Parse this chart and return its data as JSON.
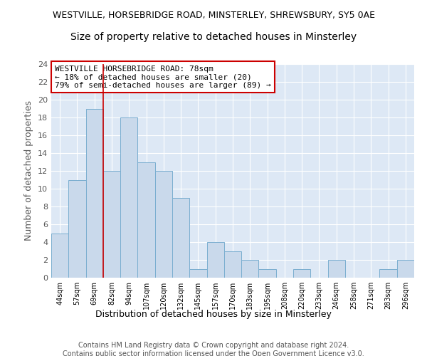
{
  "title1": "WESTVILLE, HORSEBRIDGE ROAD, MINSTERLEY, SHREWSBURY, SY5 0AE",
  "title2": "Size of property relative to detached houses in Minsterley",
  "xlabel": "Distribution of detached houses by size in Minsterley",
  "ylabel": "Number of detached properties",
  "categories": [
    "44sqm",
    "57sqm",
    "69sqm",
    "82sqm",
    "94sqm",
    "107sqm",
    "120sqm",
    "132sqm",
    "145sqm",
    "157sqm",
    "170sqm",
    "183sqm",
    "195sqm",
    "208sqm",
    "220sqm",
    "233sqm",
    "246sqm",
    "258sqm",
    "271sqm",
    "283sqm",
    "296sqm"
  ],
  "values": [
    5,
    11,
    19,
    12,
    18,
    13,
    12,
    9,
    1,
    4,
    3,
    2,
    1,
    0,
    1,
    0,
    2,
    0,
    0,
    1,
    2
  ],
  "bar_color": "#c9d9eb",
  "bar_edge_color": "#7aaed0",
  "red_line_index": 2,
  "red_line_color": "#cc0000",
  "annotation_text": "WESTVILLE HORSEBRIDGE ROAD: 78sqm\n← 18% of detached houses are smaller (20)\n79% of semi-detached houses are larger (89) →",
  "annotation_box_color": "white",
  "annotation_box_edge_color": "#cc0000",
  "ylim": [
    0,
    24
  ],
  "yticks": [
    0,
    2,
    4,
    6,
    8,
    10,
    12,
    14,
    16,
    18,
    20,
    22,
    24
  ],
  "background_color": "#dde8f5",
  "footer_text": "Contains HM Land Registry data © Crown copyright and database right 2024.\nContains public sector information licensed under the Open Government Licence v3.0.",
  "title1_fontsize": 9,
  "title2_fontsize": 10,
  "xlabel_fontsize": 9,
  "ylabel_fontsize": 9,
  "annotation_fontsize": 8,
  "footer_fontsize": 7
}
